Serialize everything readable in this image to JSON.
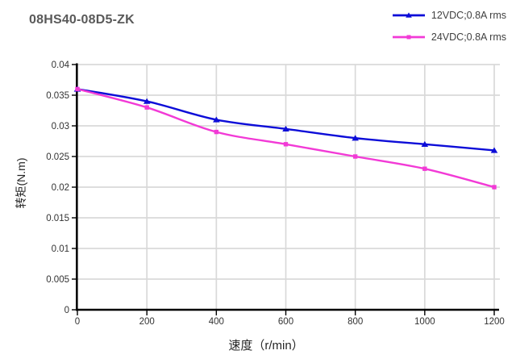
{
  "title": "08HS40-08D5-ZK",
  "legend": [
    {
      "label": "12VDC;0.8A rms",
      "color": "#0d0dd8",
      "marker": "triangle-icon"
    },
    {
      "label": "24VDC;0.8A rms",
      "color": "#f23ad6",
      "marker": "square-icon"
    }
  ],
  "chart_data": {
    "type": "line",
    "x": [
      0,
      200,
      400,
      600,
      800,
      1000,
      1200
    ],
    "series": [
      {
        "name": "12VDC;0.8A rms",
        "color": "#0d0dd8",
        "marker": "triangle",
        "values": [
          0.036,
          0.034,
          0.031,
          0.0295,
          0.028,
          0.027,
          0.026
        ]
      },
      {
        "name": "24VDC;0.8A rms",
        "color": "#f23ad6",
        "marker": "square",
        "values": [
          0.036,
          0.033,
          0.029,
          0.027,
          0.025,
          0.023,
          0.02
        ]
      }
    ],
    "title": "08HS40-08D5-ZK",
    "xlabel": "速度（r/min）",
    "ylabel": "转矩(N.m)",
    "xlim": [
      0,
      1200
    ],
    "ylim": [
      0,
      0.04
    ],
    "x_ticks": [
      0,
      200,
      400,
      600,
      800,
      1000,
      1200
    ],
    "x_tick_labels": [
      "0",
      "200",
      "400",
      "600",
      "800",
      "1000",
      "1200"
    ],
    "y_ticks": [
      0,
      0.005,
      0.01,
      0.015,
      0.02,
      0.025,
      0.03,
      0.035,
      0.04
    ],
    "y_tick_labels": [
      "0",
      "0.005",
      "0.01",
      "0.015",
      "0.02",
      "0.025",
      "0.03",
      "0.035",
      "0.04"
    ],
    "grid": true,
    "legend_position": "top-right",
    "colors": {
      "grid": "#d9d9d9",
      "axis": "#000000",
      "tick_text": "#333333",
      "title_text": "#595959",
      "axis_label_text": "#262626",
      "legend_text": "#404040"
    }
  }
}
